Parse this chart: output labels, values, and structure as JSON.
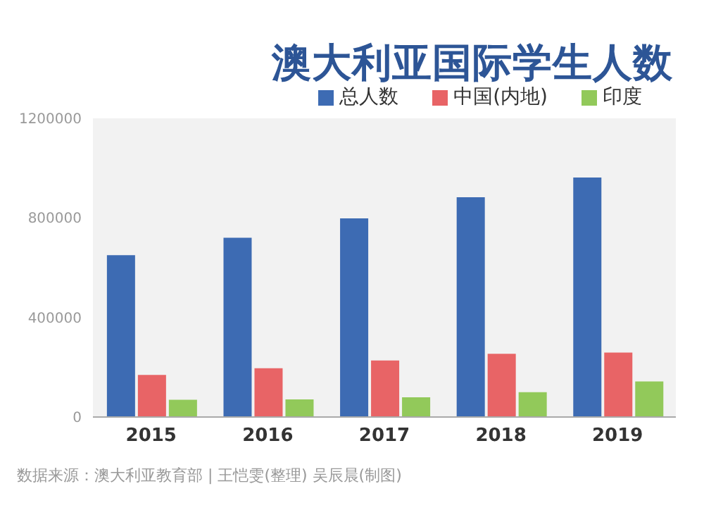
{
  "chart_data": {
    "type": "bar",
    "title": "澳大利亚国际学生人数",
    "categories": [
      "2015",
      "2016",
      "2017",
      "2018",
      "2019"
    ],
    "series": [
      {
        "name": "总人数",
        "color": "#3d6bb3",
        "values": [
          650000,
          720000,
          798000,
          883000,
          962000
        ]
      },
      {
        "name": "中国(内地)",
        "color": "#e86466",
        "values": [
          169000,
          196000,
          227000,
          254000,
          259000
        ]
      },
      {
        "name": "印度",
        "color": "#92c95a",
        "values": [
          69000,
          71000,
          79000,
          100000,
          143000
        ]
      }
    ],
    "ylim": [
      0,
      1200000
    ],
    "yticks": [
      0,
      400000,
      800000,
      1200000
    ],
    "grid": false,
    "legend": "top right",
    "annotations": [
      "数据来源：澳大利亚教育部 | 王恺雯(整理) 吴辰晨(制图)"
    ]
  }
}
